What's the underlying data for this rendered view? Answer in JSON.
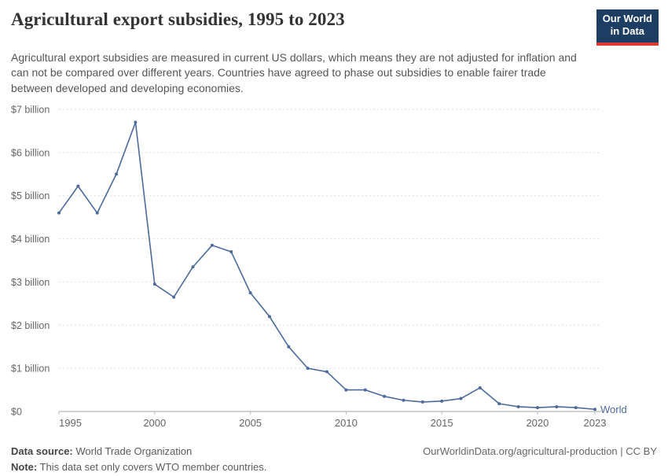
{
  "header": {
    "title": "Agricultural export subsidies, 1995 to 2023",
    "subtitle": "Agricultural export subsidies are measured in current US dollars, which means they are not adjusted for inflation and can not be compared over different years. Countries have agreed to phase out subsidies to enable fairer trade between developed and developing economies.",
    "logo_line1": "Our World",
    "logo_line2": "in Data"
  },
  "chart_data": {
    "type": "line",
    "title": "Agricultural export subsidies, 1995 to 2023",
    "unit": "current US$ (billions)",
    "x": [
      1995,
      1996,
      1997,
      1998,
      1999,
      2000,
      2001,
      2002,
      2003,
      2004,
      2005,
      2006,
      2007,
      2008,
      2009,
      2010,
      2011,
      2012,
      2013,
      2014,
      2015,
      2016,
      2017,
      2018,
      2019,
      2020,
      2021,
      2022,
      2023
    ],
    "series": [
      {
        "name": "World",
        "values": [
          4.6,
          5.22,
          4.6,
          5.5,
          6.7,
          2.95,
          2.65,
          3.35,
          3.85,
          3.7,
          2.75,
          2.2,
          1.5,
          1.0,
          0.92,
          0.5,
          0.5,
          0.35,
          0.26,
          0.22,
          0.24,
          0.3,
          0.55,
          0.18,
          0.11,
          0.09,
          0.11,
          0.09,
          0.05
        ]
      }
    ],
    "ylim": [
      0,
      7
    ],
    "yticks": [
      {
        "value": 0,
        "label": "$0"
      },
      {
        "value": 1,
        "label": "$1 billion"
      },
      {
        "value": 2,
        "label": "$2 billion"
      },
      {
        "value": 3,
        "label": "$3 billion"
      },
      {
        "value": 4,
        "label": "$4 billion"
      },
      {
        "value": 5,
        "label": "$5 billion"
      },
      {
        "value": 6,
        "label": "$6 billion"
      },
      {
        "value": 7,
        "label": "$7 billion"
      }
    ],
    "xticks": [
      1995,
      2000,
      2005,
      2010,
      2015,
      2020,
      2023
    ],
    "grid": "horizontal-dashed",
    "legend_position": "end-of-line",
    "line_color": "#4c6a9c",
    "axis_label_color": "#666",
    "gridline_color": "#dddddd",
    "zero_line_color": "#a5a5a5"
  },
  "footer": {
    "source_label": "Data source:",
    "source_text": " World Trade Organization",
    "link_text": "OurWorldinData.org/agricultural-production | CC BY",
    "note_label": "Note:",
    "note_text": " This data set only covers WTO member countries."
  }
}
